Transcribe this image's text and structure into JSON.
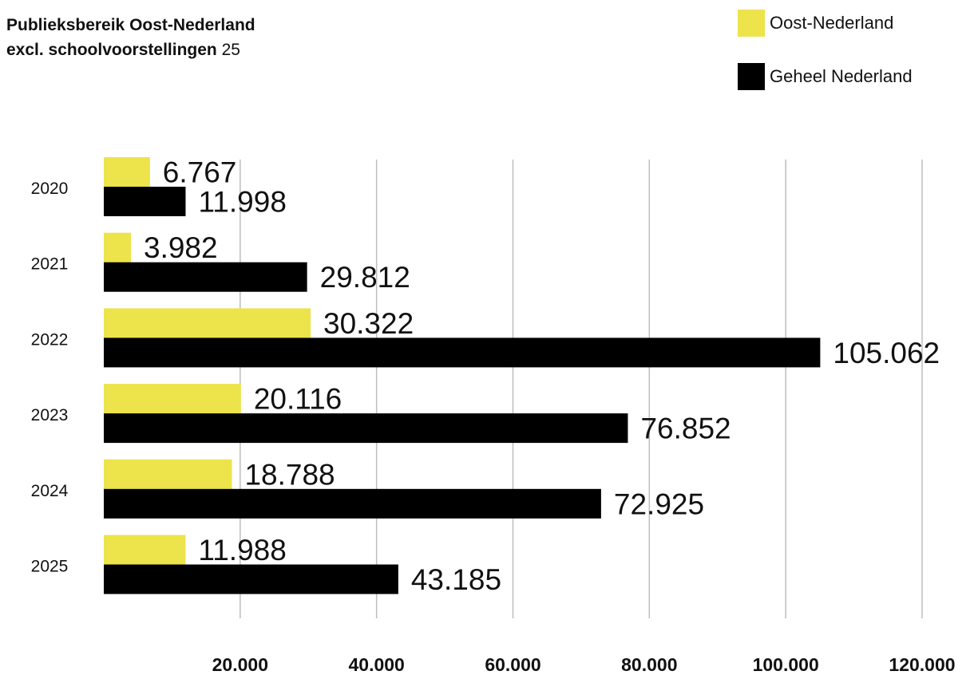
{
  "title": {
    "line1": "Publieksbereik Oost-Nederland",
    "line2_bold": "excl. schoolvoorstellingen",
    "line2_rest": " 25"
  },
  "colors": {
    "oost": "#ede34a",
    "geheel": "#000000",
    "grid": "#bdbdbd",
    "text": "#111111"
  },
  "legend": [
    {
      "label": "Oost-Nederland",
      "color": "#ede34a"
    },
    {
      "label": "Geheel Nederland",
      "color": "#000000"
    }
  ],
  "chart_data": {
    "type": "bar",
    "orientation": "horizontal",
    "categories": [
      "2020",
      "2021",
      "2022",
      "2023",
      "2024",
      "2025"
    ],
    "series": [
      {
        "name": "Oost-Nederland",
        "values": [
          6767,
          3982,
          30322,
          20116,
          18788,
          11988
        ],
        "labels": [
          "6.767",
          "3.982",
          "30.322",
          "20.116",
          "18.788",
          "11.988"
        ]
      },
      {
        "name": "Geheel Nederland",
        "values": [
          11998,
          29812,
          105062,
          76852,
          72925,
          43185
        ],
        "labels": [
          "11.998",
          "29.812",
          "105.062",
          "76.852",
          "72.925",
          "43.185"
        ]
      }
    ],
    "xlim": [
      0,
      120000
    ],
    "xticks": [
      20000,
      40000,
      60000,
      80000,
      100000,
      120000
    ],
    "xtick_labels": [
      "20.000",
      "40.000",
      "60.000",
      "80.000",
      "100.000",
      "120.000"
    ],
    "grid": "vertical",
    "legend_position": "top-right"
  }
}
